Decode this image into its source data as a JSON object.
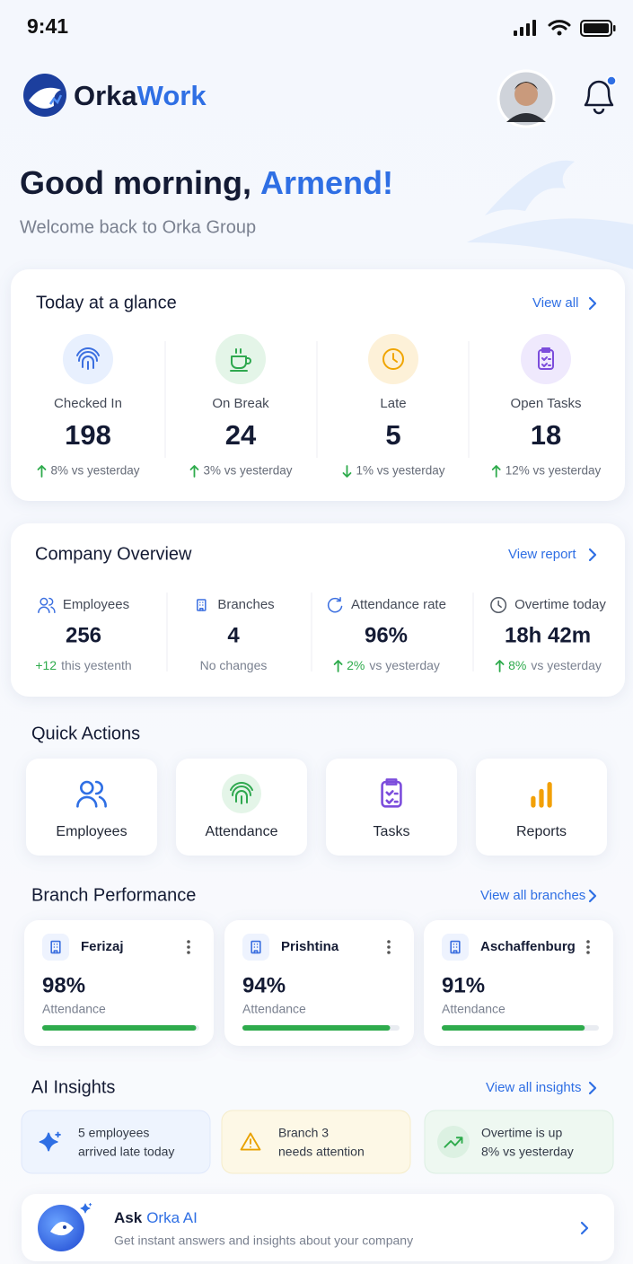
{
  "status_bar": {
    "time": "9:41"
  },
  "header": {
    "brand_primary": "Orka",
    "brand_accent": "Work",
    "greeting": "Good morning,",
    "user_name": "Armend!",
    "subtitle": "Welcome back to Orka Group"
  },
  "glance": {
    "title": "Today at a glance",
    "link": "View all",
    "items": [
      {
        "label": "Checked In",
        "value": 198,
        "change": "8% vs yesterday"
      },
      {
        "label": "On Break",
        "value": 24,
        "change": "3% vs yesterday"
      },
      {
        "label": "Late",
        "value": 5,
        "change": "1% vs yesterday"
      },
      {
        "label": "Open Tasks",
        "value": 18,
        "change": "12% vs yesterday"
      }
    ]
  },
  "overview": {
    "title": "Company Overview",
    "link": "View report",
    "items": [
      {
        "label": "Employees",
        "value": 256,
        "change": "+12",
        "note": "this yestenth"
      },
      {
        "label": "Branches",
        "value": 4,
        "note": "No changes"
      },
      {
        "label": "Attendance rate",
        "value": "96%",
        "change": "2%",
        "note": "vs yesterday"
      },
      {
        "label": "Overtime today",
        "value": "18h 42m",
        "change": "8%",
        "note": "vs yesterday"
      }
    ]
  },
  "quick_actions": {
    "title": "Quick Actions",
    "items": [
      "Employees",
      "Attendance",
      "Tasks",
      "Reports"
    ]
  },
  "branches": {
    "title": "Branch Performance",
    "link": "View all branches",
    "items": [
      {
        "name": "Ferizaj",
        "attendance": 98,
        "attendance_label": "98%",
        "metric": "Attendance"
      },
      {
        "name": "Prishtina",
        "attendance": 94,
        "attendance_label": "94%",
        "metric": "Attendance"
      },
      {
        "name": "Aschaffenburg",
        "attendance": 91,
        "attendance_label": "91%",
        "metric": "Attendance"
      }
    ]
  },
  "insights": {
    "title": "AI Insights",
    "link": "View all insights",
    "items": [
      {
        "lines": [
          "5 employees",
          "arrived late today"
        ]
      },
      {
        "lines": [
          "Branch 3",
          "needs attention"
        ]
      },
      {
        "lines": [
          "Overtime is up",
          "8% vs yesterday"
        ]
      }
    ]
  },
  "assistant": {
    "prefix": "Ask",
    "name": "Orka AI",
    "subtitle": "Get instant answers and insights about your company"
  }
}
